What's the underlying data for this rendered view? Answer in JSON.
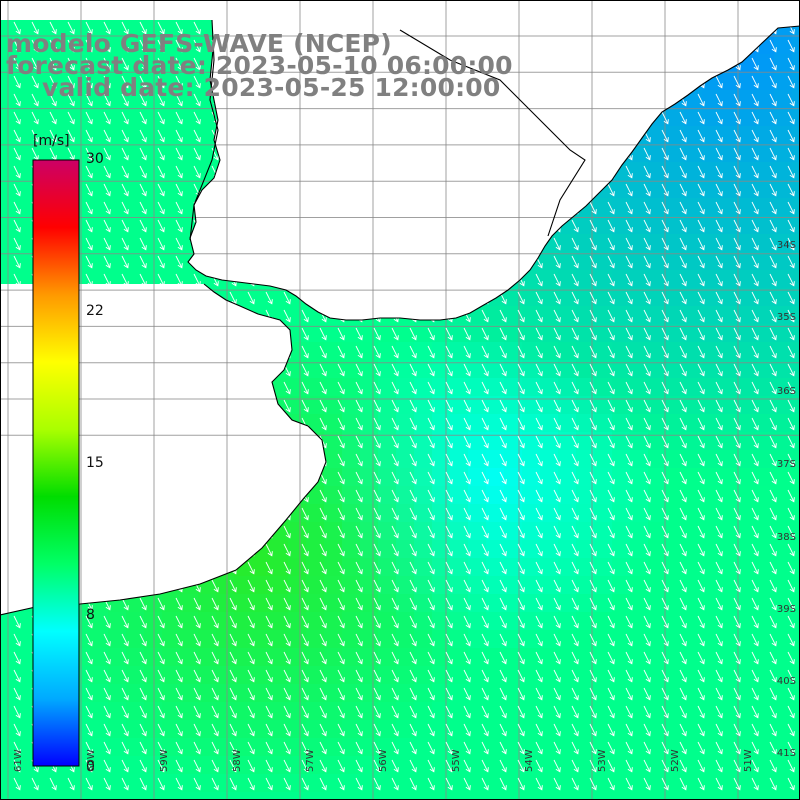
{
  "title": {
    "line1": "modelo GEFS-WAVE (NCEP)",
    "line2": "forecast date: 2023-05-10 06:00:00",
    "line3": "valid date: 2023-05-25 12:00:00"
  },
  "colorbar": {
    "unit": "[m/s]",
    "ticks": [
      "30",
      "22",
      "15",
      "8",
      "0"
    ],
    "range": [
      0,
      30
    ],
    "colors": [
      "#0000ff",
      "#00aaff",
      "#00ffff",
      "#00ff66",
      "#00dd00",
      "#aaff00",
      "#ffff00",
      "#ff9900",
      "#ff0000",
      "#cc0066"
    ]
  },
  "lat_labels": [
    "34S",
    "35S",
    "36S",
    "37S",
    "38S",
    "39S",
    "40S",
    "41S"
  ],
  "lon_labels": [
    "61W",
    "60W",
    "59W",
    "58W",
    "57W",
    "56W",
    "55W",
    "54W",
    "53W",
    "52W",
    "51W"
  ],
  "colors": {
    "land": "#ffffff",
    "grid": "#888888",
    "coast": "#000000",
    "title": "#808080"
  }
}
